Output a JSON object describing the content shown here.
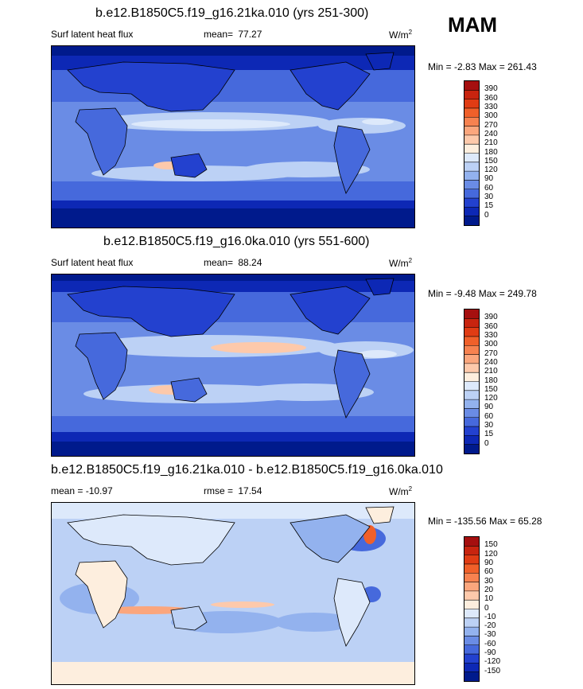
{
  "season": "MAM",
  "panels": [
    {
      "title": "b.e12.B1850C5.f19_g16.21ka.010 (yrs 251-300)",
      "variable": "Surf latent heat flux",
      "stat_label": "mean=",
      "stat_value": "77.27",
      "units_base": "W/m",
      "units_sup": "2",
      "minmax": "Min =  -2.83 Max = 261.43"
    },
    {
      "title": "b.e12.B1850C5.f19_g16.0ka.010 (yrs 551-600)",
      "variable": "Surf latent heat flux",
      "stat_label": "mean=",
      "stat_value": "88.24",
      "units_base": "W/m",
      "units_sup": "2",
      "minmax": "Min =  -9.48 Max = 249.78"
    },
    {
      "title": "b.e12.B1850C5.f19_g16.21ka.010 - b.e12.B1850C5.f19_g16.0ka.010",
      "variable": "mean = -10.97",
      "stat_label": "rmse =",
      "stat_value": "17.54",
      "units_base": "W/m",
      "units_sup": "2",
      "minmax": "Min = -135.56 Max =  65.28"
    }
  ],
  "colorbars": {
    "abs_labels": [
      "390",
      "360",
      "330",
      "300",
      "270",
      "240",
      "210",
      "180",
      "150",
      "120",
      "90",
      "60",
      "30",
      "15",
      "0"
    ],
    "abs_colors": [
      "#a50f0f",
      "#c8240f",
      "#e03c14",
      "#f0602a",
      "#f78250",
      "#fba67d",
      "#fdc9ab",
      "#fdeede",
      "#dde9fb",
      "#bcd1f5",
      "#93b2ee",
      "#6a8ce5",
      "#4669dc",
      "#2341cf",
      "#0d28b5",
      "#001a8c"
    ],
    "diff_labels": [
      "150",
      "120",
      "90",
      "60",
      "30",
      "20",
      "10",
      "0",
      "-10",
      "-20",
      "-30",
      "-60",
      "-90",
      "-120",
      "-150"
    ],
    "diff_colors": [
      "#a50f0f",
      "#c8240f",
      "#e03c14",
      "#f0602a",
      "#f78250",
      "#fba67d",
      "#fdc9ab",
      "#fdeede",
      "#dde9fb",
      "#bcd1f5",
      "#93b2ee",
      "#6a8ce5",
      "#4669dc",
      "#2341cf",
      "#0d28b5",
      "#001a8c"
    ]
  },
  "chart_data": [
    {
      "type": "heatmap",
      "title": "b.e12.B1850C5.f19_g16.21ka.010 (yrs 251-300)",
      "variable": "Surf latent heat flux",
      "units": "W/m2",
      "mean": 77.27,
      "min": -2.83,
      "max": 261.43,
      "levels": [
        0,
        15,
        30,
        60,
        90,
        120,
        150,
        180,
        210,
        240,
        270,
        300,
        330,
        360,
        390
      ]
    },
    {
      "type": "heatmap",
      "title": "b.e12.B1850C5.f19_g16.0ka.010 (yrs 551-600)",
      "variable": "Surf latent heat flux",
      "units": "W/m2",
      "mean": 88.24,
      "min": -9.48,
      "max": 249.78,
      "levels": [
        0,
        15,
        30,
        60,
        90,
        120,
        150,
        180,
        210,
        240,
        270,
        300,
        330,
        360,
        390
      ]
    },
    {
      "type": "heatmap",
      "title": "b.e12.B1850C5.f19_g16.21ka.010 - b.e12.B1850C5.f19_g16.0ka.010",
      "units": "W/m2",
      "mean": -10.97,
      "rmse": 17.54,
      "min": -135.56,
      "max": 65.28,
      "levels": [
        -150,
        -120,
        -90,
        -60,
        -30,
        -20,
        -10,
        0,
        10,
        20,
        30,
        60,
        90,
        120,
        150
      ]
    }
  ]
}
